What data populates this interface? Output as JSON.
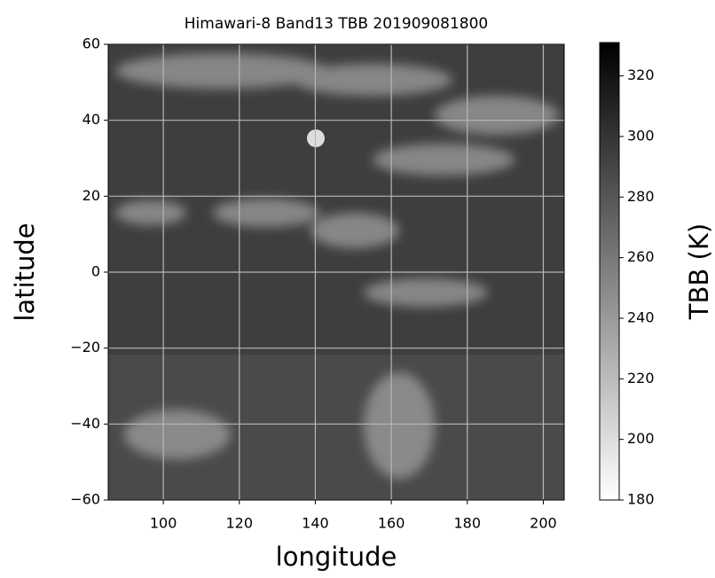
{
  "chart_data": {
    "type": "image",
    "title": "Himawari-8 Band13 TBB 201909081800",
    "x_label": "longitude",
    "y_label": "latitude",
    "xlim": [
      85.5,
      205.5
    ],
    "xticks": [
      100,
      120,
      140,
      160,
      180,
      200
    ],
    "ylim": [
      -60,
      60
    ],
    "yticks": [
      {
        "value": -60,
        "label": "−60"
      },
      {
        "value": -40,
        "label": "−40"
      },
      {
        "value": -20,
        "label": "−20"
      },
      0,
      20,
      40,
      60
    ],
    "grid": true,
    "grid_color": "#b8b8b8",
    "colorbar": {
      "label": "TBB (K)",
      "lim": [
        180,
        331
      ],
      "ticks": [
        180,
        200,
        220,
        240,
        260,
        280,
        300,
        320
      ],
      "colors": [
        "#ffffff",
        "#000000"
      ]
    }
  }
}
